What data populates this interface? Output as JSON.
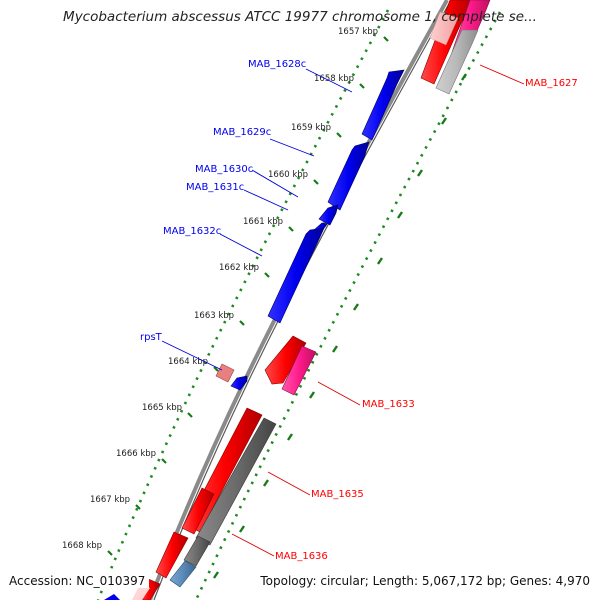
{
  "title": "Mycobacterium abscessus ATCC 19977 chromosome 1, complete se...",
  "footer": {
    "accession": "Accession: NC_010397",
    "summary": "Topology: circular; Length: 5,067,172 bp; Genes: 4,970"
  },
  "ticks": [
    "1657 kbp",
    "1658 kbp",
    "1659 kbp",
    "1660 kbp",
    "1661 kbp",
    "1662 kbp",
    "1663 kbp",
    "1664 kbp",
    "1665 kbp",
    "1666 kbp",
    "1667 kbp",
    "1668 kbp"
  ],
  "genes_minus": [
    {
      "name": "MAB_1628c",
      "color": "#0000ee"
    },
    {
      "name": "MAB_1629c",
      "color": "#0000ee"
    },
    {
      "name": "MAB_1630c",
      "color": "#0000ee"
    },
    {
      "name": "MAB_1631c",
      "color": "#0000ee"
    },
    {
      "name": "MAB_1632c",
      "color": "#0000ee"
    },
    {
      "name": "rpsT",
      "color": "#0000ee"
    }
  ],
  "genes_plus": [
    {
      "name": "MAB_1627",
      "color": "#ff0000"
    },
    {
      "name": "MAB_1633",
      "color": "#ff0000"
    },
    {
      "name": "MAB_1635",
      "color": "#ff0000"
    },
    {
      "name": "MAB_1636",
      "color": "#ff0000"
    }
  ],
  "colors": {
    "cds_minus": "#0000ff",
    "cds_plus": "#ff0000",
    "gene_plus": "#ff1a8c",
    "gene_gray": "#777777",
    "gene_light": "#b0b0b0",
    "gene_pink": "#e98080",
    "gene_steel": "#5a8ab8",
    "backbone": "#888888",
    "tick_dots": "#228b22",
    "tick_dash": "#2e8b2e"
  }
}
